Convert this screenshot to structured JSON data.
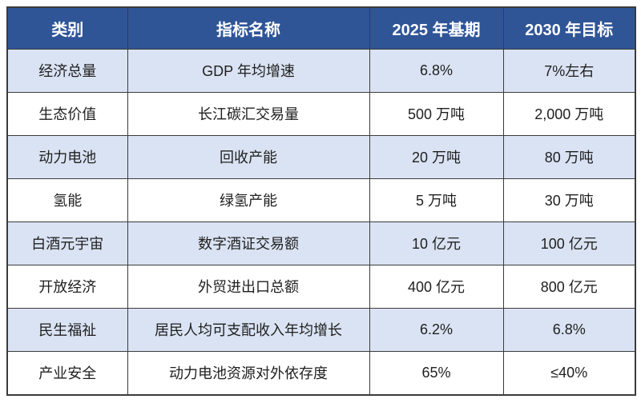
{
  "colors": {
    "header_bg": "#2F5597",
    "header_text": "#FFFFFF",
    "row_alt_bg": "#DAE3F3",
    "row_bg": "#FFFFFF",
    "border": "#3B3B3B",
    "body_text": "#1F1F1F"
  },
  "table": {
    "headers": [
      "类别",
      "指标名称",
      "2025 年基期",
      "2030 年目标"
    ],
    "rows": [
      {
        "category": "经济总量",
        "indicator": "GDP 年均增速",
        "base": "6.8%",
        "target": "7%左右"
      },
      {
        "category": "生态价值",
        "indicator": "长江碳汇交易量",
        "base": "500 万吨",
        "target": "2,000 万吨"
      },
      {
        "category": "动力电池",
        "indicator": "回收产能",
        "base": "20 万吨",
        "target": "80 万吨"
      },
      {
        "category": "氢能",
        "indicator": "绿氢产能",
        "base": "5 万吨",
        "target": "30 万吨"
      },
      {
        "category": "白酒元宇宙",
        "indicator": "数字酒证交易额",
        "base": "10 亿元",
        "target": "100 亿元"
      },
      {
        "category": "开放经济",
        "indicator": "外贸进出口总额",
        "base": "400 亿元",
        "target": "800 亿元"
      },
      {
        "category": "民生福祉",
        "indicator": "居民人均可支配收入年均增长",
        "base": "6.2%",
        "target": "6.8%"
      },
      {
        "category": "产业安全",
        "indicator": "动力电池资源对外依存度",
        "base": "65%",
        "target": "≤40%"
      }
    ]
  },
  "chart_data": {
    "type": "table",
    "columns": [
      "类别",
      "指标名称",
      "2025 年基期",
      "2030 年目标"
    ],
    "rows": [
      [
        "经济总量",
        "GDP 年均增速",
        "6.8%",
        "7%左右"
      ],
      [
        "生态价值",
        "长江碳汇交易量",
        "500 万吨",
        "2,000 万吨"
      ],
      [
        "动力电池",
        "回收产能",
        "20 万吨",
        "80 万吨"
      ],
      [
        "氢能",
        "绿氢产能",
        "5 万吨",
        "30 万吨"
      ],
      [
        "白酒元宇宙",
        "数字酒证交易额",
        "10 亿元",
        "100 亿元"
      ],
      [
        "开放经济",
        "外贸进出口总额",
        "400 亿元",
        "800 亿元"
      ],
      [
        "民生福祉",
        "居民人均可支配收入年均增长",
        "6.2%",
        "6.8%"
      ],
      [
        "产业安全",
        "动力电池资源对外依存度",
        "65%",
        "≤40%"
      ]
    ],
    "layout": {
      "header_style": "dark-blue banded header, white bold text",
      "row_striping": "odd rows light blue (#DAE3F3), even rows white",
      "grid": true
    }
  }
}
